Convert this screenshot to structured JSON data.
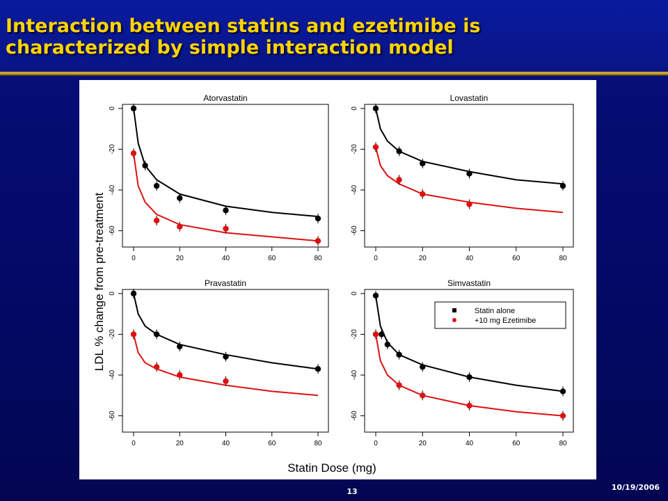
{
  "slide": {
    "title_line1": "Interaction between statins and ezetimibe is",
    "title_line2": "characterized by simple interaction model",
    "page_number": "13",
    "date": "10/19/2006"
  },
  "colors": {
    "statin_alone": "#000000",
    "with_ezetimibe": "#dd1111",
    "title": "#ffd400",
    "background": "#030a6a"
  },
  "chart_data": {
    "type": "scatter",
    "ylabel": "LDL % change from pre-treatment",
    "xlabel": "Statin Dose (mg)",
    "x_ticks": [
      0,
      20,
      40,
      60,
      80
    ],
    "y_ticks": [
      0,
      -20,
      -40,
      -60
    ],
    "xlim": [
      0,
      80
    ],
    "ylim": [
      -68,
      2
    ],
    "grid": false,
    "legend": {
      "position": "top-right of Simvastatin panel",
      "entries": [
        "Statin alone",
        "+10 mg Ezetimibe"
      ]
    },
    "panels": [
      {
        "name": "Atorvastatin",
        "series": [
          {
            "name": "Statin alone",
            "points": [
              [
                0,
                0
              ],
              [
                5,
                -28
              ],
              [
                10,
                -38
              ],
              [
                20,
                -44
              ],
              [
                40,
                -50
              ],
              [
                80,
                -54
              ]
            ],
            "curve": [
              [
                0,
                0
              ],
              [
                2,
                -17
              ],
              [
                5,
                -28
              ],
              [
                10,
                -35
              ],
              [
                20,
                -42
              ],
              [
                40,
                -48
              ],
              [
                60,
                -51
              ],
              [
                80,
                -53
              ]
            ]
          },
          {
            "name": "+10 mg Ezetimibe",
            "points": [
              [
                0,
                -22
              ],
              [
                10,
                -55
              ],
              [
                20,
                -58
              ],
              [
                40,
                -59
              ],
              [
                80,
                -65
              ]
            ],
            "curve": [
              [
                0,
                -22
              ],
              [
                2,
                -38
              ],
              [
                5,
                -46
              ],
              [
                10,
                -52
              ],
              [
                20,
                -57
              ],
              [
                40,
                -61
              ],
              [
                60,
                -63
              ],
              [
                80,
                -65
              ]
            ]
          }
        ]
      },
      {
        "name": "Lovastatin",
        "series": [
          {
            "name": "Statin alone",
            "points": [
              [
                0,
                0
              ],
              [
                10,
                -21
              ],
              [
                20,
                -27
              ],
              [
                40,
                -32
              ],
              [
                80,
                -38
              ]
            ],
            "curve": [
              [
                0,
                0
              ],
              [
                2,
                -10
              ],
              [
                5,
                -16
              ],
              [
                10,
                -21
              ],
              [
                20,
                -26
              ],
              [
                40,
                -31
              ],
              [
                60,
                -35
              ],
              [
                80,
                -37
              ]
            ]
          },
          {
            "name": "+10 mg Ezetimibe",
            "points": [
              [
                0,
                -19
              ],
              [
                10,
                -35
              ],
              [
                20,
                -42
              ],
              [
                40,
                -47
              ]
            ],
            "curve": [
              [
                0,
                -19
              ],
              [
                2,
                -28
              ],
              [
                5,
                -33
              ],
              [
                10,
                -37
              ],
              [
                20,
                -42
              ],
              [
                40,
                -46
              ],
              [
                60,
                -49
              ],
              [
                80,
                -51
              ]
            ]
          }
        ]
      },
      {
        "name": "Pravastatin",
        "series": [
          {
            "name": "Statin alone",
            "points": [
              [
                0,
                0
              ],
              [
                10,
                -20
              ],
              [
                20,
                -26
              ],
              [
                40,
                -31
              ],
              [
                80,
                -37
              ]
            ],
            "curve": [
              [
                0,
                0
              ],
              [
                2,
                -10
              ],
              [
                5,
                -16
              ],
              [
                10,
                -20
              ],
              [
                20,
                -25
              ],
              [
                40,
                -30
              ],
              [
                60,
                -34
              ],
              [
                80,
                -37
              ]
            ]
          },
          {
            "name": "+10 mg Ezetimibe",
            "points": [
              [
                0,
                -20
              ],
              [
                10,
                -36
              ],
              [
                20,
                -40
              ],
              [
                40,
                -43
              ]
            ],
            "curve": [
              [
                0,
                -20
              ],
              [
                2,
                -29
              ],
              [
                5,
                -34
              ],
              [
                10,
                -37
              ],
              [
                20,
                -41
              ],
              [
                40,
                -45
              ],
              [
                60,
                -48
              ],
              [
                80,
                -50
              ]
            ]
          }
        ]
      },
      {
        "name": "Simvastatin",
        "series": [
          {
            "name": "Statin alone",
            "points": [
              [
                0,
                -1
              ],
              [
                2.5,
                -20
              ],
              [
                5,
                -25
              ],
              [
                10,
                -30
              ],
              [
                20,
                -36
              ],
              [
                40,
                -41
              ],
              [
                80,
                -48
              ]
            ],
            "curve": [
              [
                0,
                -1
              ],
              [
                2,
                -16
              ],
              [
                5,
                -24
              ],
              [
                10,
                -30
              ],
              [
                20,
                -35
              ],
              [
                40,
                -41
              ],
              [
                60,
                -45
              ],
              [
                80,
                -48
              ]
            ]
          },
          {
            "name": "+10 mg Ezetimibe",
            "points": [
              [
                0,
                -20
              ],
              [
                10,
                -45
              ],
              [
                20,
                -50
              ],
              [
                40,
                -55
              ],
              [
                80,
                -60
              ]
            ],
            "curve": [
              [
                0,
                -20
              ],
              [
                2,
                -33
              ],
              [
                5,
                -40
              ],
              [
                10,
                -45
              ],
              [
                20,
                -50
              ],
              [
                40,
                -55
              ],
              [
                60,
                -58
              ],
              [
                80,
                -60
              ]
            ]
          }
        ]
      }
    ]
  }
}
